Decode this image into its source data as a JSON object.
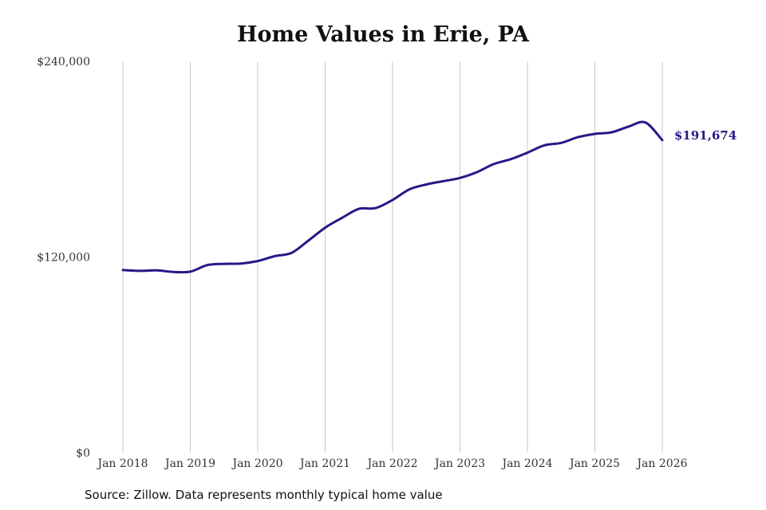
{
  "chart_data": {
    "type": "line",
    "title": "Home Values in Erie, PA",
    "xlabel": "",
    "ylabel": "",
    "ylim": [
      0,
      240000
    ],
    "y_ticks": [
      0,
      120000,
      240000
    ],
    "y_tick_labels": [
      "$0",
      "$120,000",
      "$240,000"
    ],
    "x_ticks": [
      2018,
      2019,
      2020,
      2021,
      2022,
      2023,
      2024,
      2025,
      2026
    ],
    "x_tick_labels": [
      "Jan 2018",
      "Jan 2019",
      "Jan 2020",
      "Jan 2021",
      "Jan 2022",
      "Jan 2023",
      "Jan 2024",
      "Jan 2025",
      "Jan 2026"
    ],
    "grid": "vertical",
    "line_color": "#241a86",
    "end_label": "$191,674",
    "series": [
      {
        "x": [
          2018.0,
          2018.25,
          2018.5,
          2018.75,
          2019.0,
          2019.25,
          2019.5,
          2019.75,
          2020.0,
          2020.25,
          2020.5,
          2020.75,
          2021.0,
          2021.25,
          2021.5,
          2021.75,
          2022.0,
          2022.25,
          2022.5,
          2022.75,
          2023.0,
          2023.25,
          2023.5,
          2023.75,
          2024.0,
          2024.25,
          2024.5,
          2024.75,
          2025.0,
          2025.25,
          2025.5,
          2025.75,
          2026.0
        ],
        "values": [
          112000,
          111500,
          111800,
          110800,
          111000,
          115000,
          115800,
          116000,
          117500,
          120500,
          122500,
          130000,
          138000,
          144000,
          149500,
          150000,
          155000,
          161500,
          164500,
          166500,
          168500,
          172000,
          177000,
          180000,
          184000,
          188500,
          190000,
          193500,
          195500,
          196500,
          200000,
          202500,
          191674
        ]
      }
    ]
  },
  "source": "Source: Zillow. Data represents monthly typical home value"
}
